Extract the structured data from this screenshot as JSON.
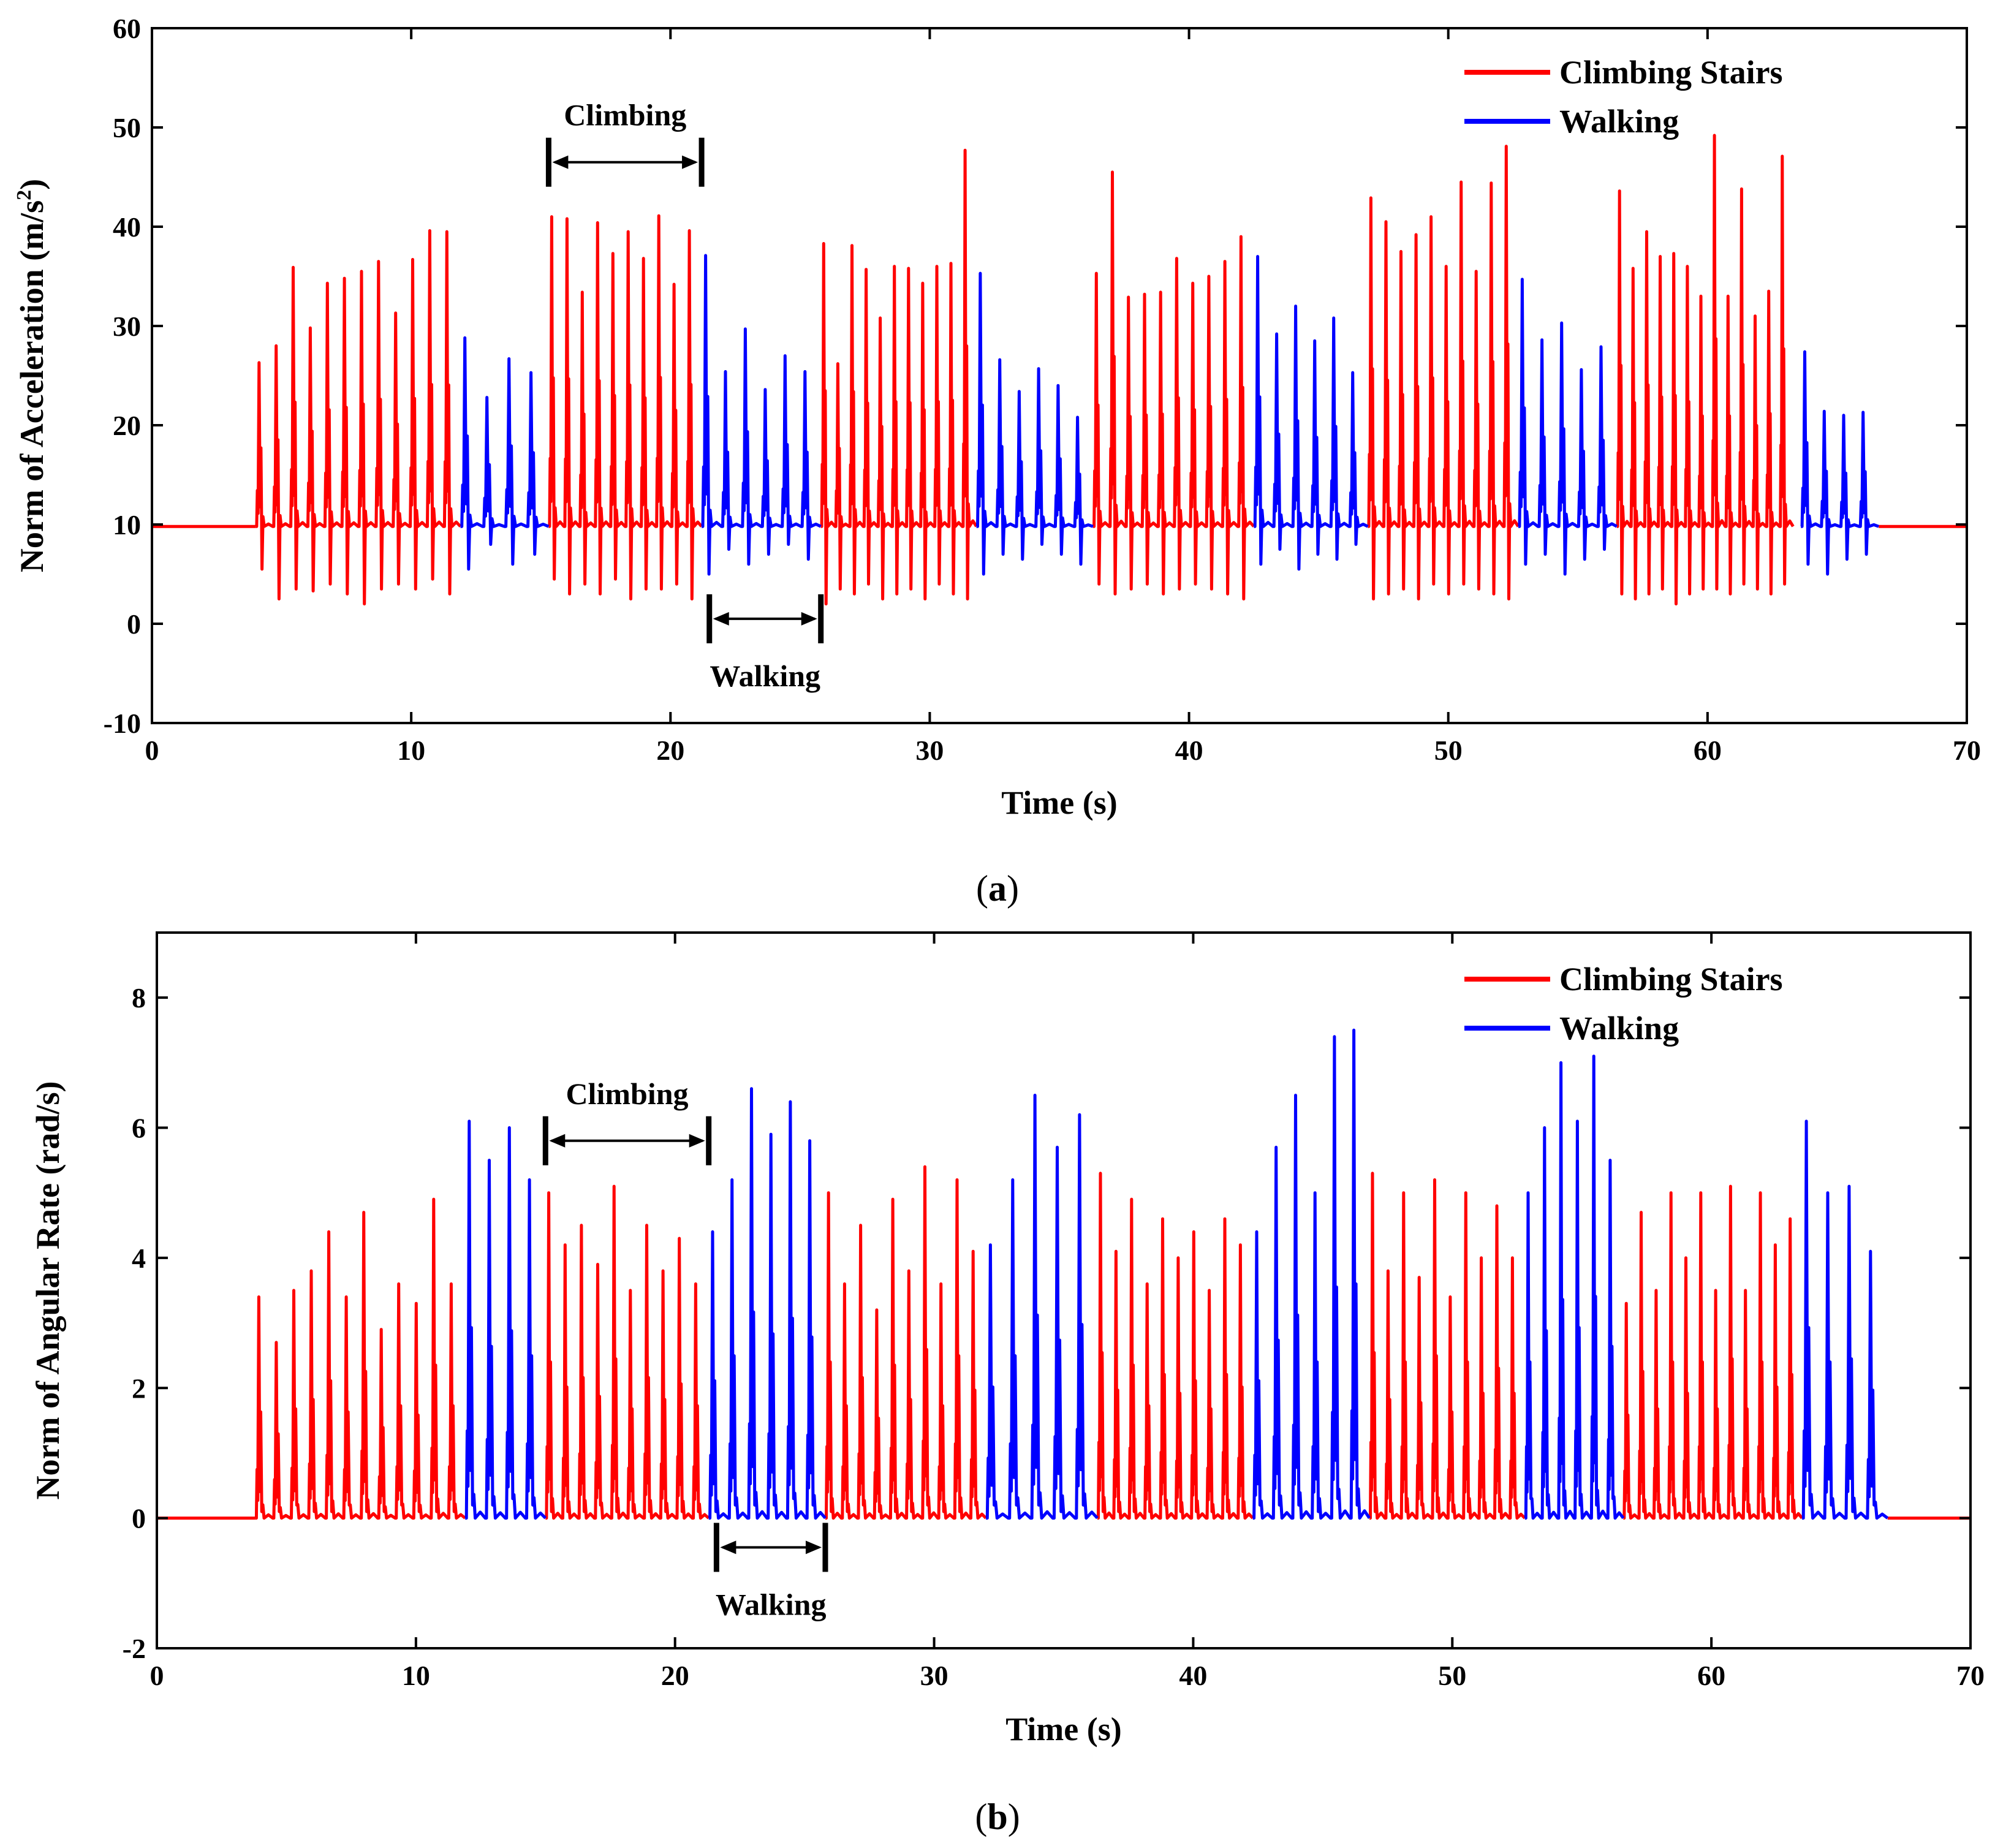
{
  "colors": {
    "climbing": "#ff0000",
    "walking": "#0000ff",
    "axis": "#000000",
    "background": "#ffffff"
  },
  "chart_data": [
    {
      "type": "line",
      "caption_letter": "a",
      "xlabel": "Time (s)",
      "ylabel_main": "Norm of Acceleration (m/s",
      "ylabel_sup": "2",
      "ylabel_tail": ")",
      "xlim": [
        0,
        70
      ],
      "ylim": [
        -10,
        60
      ],
      "xticks": [
        0,
        10,
        20,
        30,
        40,
        50,
        60,
        70
      ],
      "yticks": [
        -10,
        0,
        10,
        20,
        30,
        40,
        50,
        60
      ],
      "grid": false,
      "legend_position": "top-right",
      "legend": [
        "Climbing Stairs",
        "Walking"
      ],
      "baseline": 9.8,
      "idle_segments": [
        [
          0,
          4.0
        ],
        [
          66.6,
          70
        ]
      ],
      "series": [
        {
          "name": "Climbing Stairs",
          "color_key": "climbing",
          "segments": [
            {
              "start": 4.0,
              "end": 11.9,
              "peaks": [
                26.3,
                28.0,
                35.9,
                29.8,
                34.3,
                34.8,
                35.5,
                36.5,
                31.3,
                36.7,
                39.6,
                39.5
              ],
              "troughs": [
                5.5,
                2.5,
                3.5,
                3.3,
                4.0,
                3.0,
                2.0,
                3.5,
                4.0,
                3.5,
                4.5,
                3.0
              ]
            },
            {
              "start": 15.3,
              "end": 21.2,
              "peaks": [
                41.0,
                40.8,
                33.4,
                40.4,
                37.3,
                39.5,
                36.8,
                41.1,
                34.2,
                39.6
              ],
              "troughs": [
                4.5,
                3.0,
                4.0,
                3.0,
                4.5,
                2.5,
                3.5,
                3.5,
                4.0,
                2.5
              ]
            },
            {
              "start": 25.8,
              "end": 31.8,
              "peaks": [
                38.3,
                26.2,
                38.1,
                35.7,
                30.8,
                36.0,
                35.8,
                34.3,
                36.0,
                36.3,
                47.7
              ],
              "troughs": [
                2.0,
                3.5,
                3.0,
                4.0,
                2.5,
                3.0,
                3.5,
                2.5,
                4.0,
                3.0,
                2.5
              ]
            },
            {
              "start": 36.3,
              "end": 42.5,
              "peaks": [
                35.3,
                45.5,
                32.9,
                33.2,
                33.4,
                36.8,
                34.3,
                35.0,
                36.5,
                39.0
              ],
              "troughs": [
                4.0,
                3.0,
                3.5,
                4.0,
                3.0,
                3.5,
                4.0,
                3.5,
                3.0,
                2.5
              ]
            },
            {
              "start": 46.9,
              "end": 52.7,
              "peaks": [
                42.9,
                40.5,
                37.5,
                39.2,
                41.0,
                36.0,
                44.5,
                35.5,
                44.4,
                48.1
              ],
              "troughs": [
                2.5,
                3.0,
                3.5,
                2.5,
                4.0,
                3.0,
                4.0,
                3.5,
                3.0,
                2.5
              ]
            },
            {
              "start": 56.5,
              "end": 63.3,
              "peaks": [
                43.6,
                35.8,
                39.5,
                37.0,
                37.3,
                36.0,
                33.0,
                49.2,
                33.0,
                43.8,
                31.0,
                33.5,
                47.1
              ],
              "troughs": [
                3.0,
                2.5,
                3.0,
                3.5,
                2.0,
                3.0,
                3.5,
                3.5,
                3.0,
                4.0,
                3.5,
                3.0,
                4.0
              ]
            }
          ]
        },
        {
          "name": "Walking",
          "color_key": "walking",
          "segments": [
            {
              "start": 11.9,
              "end": 15.3,
              "peaks": [
                28.8,
                22.8,
                26.7,
                25.3
              ],
              "troughs": [
                5.5,
                8.0,
                6.0,
                7.0
              ]
            },
            {
              "start": 21.2,
              "end": 25.8,
              "peaks": [
                37.1,
                25.4,
                29.7,
                23.6,
                27.0,
                25.4
              ],
              "troughs": [
                5.0,
                7.5,
                6.0,
                7.0,
                8.0,
                6.5
              ]
            },
            {
              "start": 31.8,
              "end": 36.3,
              "peaks": [
                35.3,
                26.6,
                23.4,
                25.7,
                24.0,
                20.8
              ],
              "troughs": [
                5.0,
                7.0,
                6.5,
                8.0,
                7.0,
                6.0
              ]
            },
            {
              "start": 42.5,
              "end": 46.9,
              "peaks": [
                37.0,
                29.2,
                32.0,
                28.5,
                30.8,
                25.3
              ],
              "troughs": [
                6.0,
                7.5,
                5.5,
                7.0,
                6.5,
                8.0
              ]
            },
            {
              "start": 52.7,
              "end": 56.5,
              "peaks": [
                34.7,
                28.6,
                30.3,
                25.6,
                27.9
              ],
              "troughs": [
                6.0,
                7.0,
                5.0,
                6.5,
                7.5
              ]
            },
            {
              "start": 63.6,
              "end": 66.6,
              "peaks": [
                27.4,
                21.4,
                21.0,
                21.3
              ],
              "troughs": [
                6.0,
                5.0,
                6.5,
                7.0
              ]
            }
          ]
        }
      ],
      "annotations": [
        {
          "label": "Climbing",
          "x_range": [
            15.3,
            21.2
          ],
          "y": 46.5,
          "label_side": "above"
        },
        {
          "label": "Walking",
          "x_range": [
            21.5,
            25.8
          ],
          "y": 0.5,
          "label_side": "below"
        }
      ]
    },
    {
      "type": "line",
      "caption_letter": "b",
      "xlabel": "Time (s)",
      "ylabel_main": "Norm of Angular Rate (rad/s)",
      "xlim": [
        0,
        70
      ],
      "ylim": [
        -2,
        9
      ],
      "xticks": [
        0,
        10,
        20,
        30,
        40,
        50,
        60,
        70
      ],
      "yticks": [
        -2,
        0,
        2,
        4,
        6,
        8
      ],
      "grid": false,
      "legend_position": "top-right",
      "legend": [
        "Climbing Stairs",
        "Walking"
      ],
      "baseline": 0.0,
      "idle_segments": [
        [
          0,
          3.8
        ],
        [
          66.8,
          70
        ]
      ],
      "series": [
        {
          "name": "Climbing Stairs",
          "color_key": "climbing",
          "segments": [
            {
              "start": 3.8,
              "end": 11.9,
              "peaks": [
                3.4,
                2.7,
                3.5,
                3.8,
                4.4,
                3.4,
                4.7,
                2.9,
                3.6,
                3.3,
                4.9,
                3.6
              ],
              "troughs": [
                0.1,
                0.1,
                0.2,
                0.1,
                0.1,
                0.2,
                0.1,
                0.1,
                0.2,
                0.1,
                0.1,
                0.1
              ]
            },
            {
              "start": 15.0,
              "end": 21.3,
              "peaks": [
                5.0,
                4.2,
                4.5,
                3.9,
                5.1,
                3.5,
                4.5,
                3.8,
                4.3,
                3.6
              ],
              "troughs": [
                0.1,
                0.1,
                0.1,
                0.2,
                0.1,
                0.1,
                0.1,
                0.1,
                0.1,
                0.1
              ]
            },
            {
              "start": 25.8,
              "end": 32.0,
              "peaks": [
                5.0,
                3.6,
                4.5,
                3.2,
                4.9,
                3.8,
                5.4,
                3.6,
                5.2,
                4.1
              ],
              "troughs": [
                0.1,
                0.1,
                0.2,
                0.1,
                0.1,
                0.1,
                0.2,
                0.1,
                0.1,
                0.2
              ]
            },
            {
              "start": 36.3,
              "end": 42.3,
              "peaks": [
                5.3,
                4.1,
                4.9,
                3.6,
                4.6,
                4.0,
                4.4,
                3.5,
                4.6,
                4.2
              ],
              "troughs": [
                0.1,
                0.1,
                0.1,
                0.1,
                0.2,
                0.1,
                0.1,
                0.1,
                0.1,
                0.1
              ]
            },
            {
              "start": 46.8,
              "end": 52.8,
              "peaks": [
                5.3,
                3.8,
                5.0,
                3.7,
                5.2,
                3.4,
                5.0,
                4.0,
                4.8,
                4.0
              ],
              "troughs": [
                0.1,
                0.1,
                0.1,
                0.2,
                0.1,
                0.1,
                0.1,
                0.1,
                0.1,
                0.2
              ]
            },
            {
              "start": 56.6,
              "end": 63.5,
              "peaks": [
                3.3,
                4.7,
                3.5,
                5.0,
                4.0,
                5.0,
                3.5,
                5.1,
                3.5,
                5.0,
                4.2,
                4.6
              ],
              "troughs": [
                0.1,
                0.1,
                0.1,
                0.2,
                0.1,
                0.1,
                0.1,
                0.2,
                0.1,
                0.1,
                0.1,
                0.1
              ]
            }
          ]
        },
        {
          "name": "Walking",
          "color_key": "walking",
          "segments": [
            {
              "start": 11.9,
              "end": 15.0,
              "peaks": [
                6.1,
                5.5,
                6.0,
                5.2
              ],
              "troughs": [
                0.2,
                0.2,
                0.3,
                0.2
              ]
            },
            {
              "start": 21.3,
              "end": 25.8,
              "peaks": [
                4.4,
                5.2,
                6.6,
                5.9,
                6.4,
                5.8
              ],
              "troughs": [
                0.1,
                0.2,
                0.2,
                0.2,
                0.3,
                0.2
              ]
            },
            {
              "start": 32.0,
              "end": 36.3,
              "peaks": [
                4.2,
                5.2,
                6.5,
                5.7,
                6.2
              ],
              "troughs": [
                0.2,
                0.2,
                0.2,
                0.1,
                0.2
              ]
            },
            {
              "start": 42.3,
              "end": 46.8,
              "peaks": [
                4.4,
                5.7,
                6.5,
                5.0,
                7.4,
                7.5
              ],
              "troughs": [
                0.2,
                0.2,
                0.2,
                0.1,
                0.3,
                0.2
              ]
            },
            {
              "start": 52.8,
              "end": 56.6,
              "peaks": [
                5.0,
                6.0,
                7.0,
                6.1,
                7.1,
                5.5
              ],
              "troughs": [
                0.3,
                0.2,
                0.2,
                0.2,
                0.2,
                0.3
              ]
            },
            {
              "start": 63.5,
              "end": 66.8,
              "peaks": [
                6.1,
                5.0,
                5.1,
                4.1
              ],
              "troughs": [
                0.2,
                0.2,
                0.1,
                0.2
              ]
            }
          ]
        }
      ],
      "annotations": [
        {
          "label": "Climbing",
          "x_range": [
            15.0,
            21.3
          ],
          "y": 5.8,
          "label_side": "above"
        },
        {
          "label": "Walking",
          "x_range": [
            21.6,
            25.8
          ],
          "y": -0.45,
          "label_side": "below"
        }
      ]
    }
  ]
}
